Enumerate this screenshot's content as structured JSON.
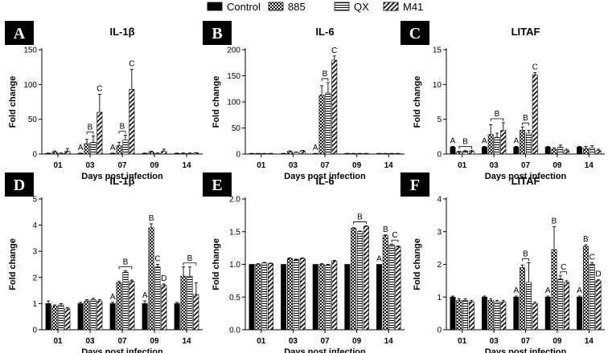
{
  "legend": {
    "items": [
      {
        "label": "Control",
        "pattern": "solid"
      },
      {
        "label": "885",
        "pattern": "checker"
      },
      {
        "label": "QX",
        "pattern": "hlines"
      },
      {
        "label": "M41",
        "pattern": "diag"
      }
    ]
  },
  "colors": {
    "ink": "#000000",
    "panel_label_bg": "#000000",
    "panel_label_fg": "#ffffff",
    "background": "#ffffff"
  },
  "chart_data": [
    {
      "panel": "A",
      "title": "IL-1β",
      "type": "bar",
      "ylabel": "Fold change",
      "xlabel": "Days post infection",
      "ylim": [
        0,
        150
      ],
      "yticks": [
        0,
        50,
        100,
        150
      ],
      "categories": [
        "01",
        "03",
        "07",
        "09",
        "14"
      ],
      "series": [
        {
          "name": "Control",
          "values": [
            1,
            1,
            1,
            1,
            1
          ],
          "errors": [
            0.3,
            0.3,
            0.3,
            0.3,
            0.3
          ]
        },
        {
          "name": "885",
          "values": [
            3,
            15,
            12,
            3,
            1
          ],
          "errors": [
            1.5,
            6,
            5,
            1,
            0.5
          ]
        },
        {
          "name": "QX",
          "values": [
            1,
            17,
            20,
            1,
            1
          ],
          "errors": [
            0.5,
            9,
            7,
            0.5,
            0.5
          ]
        },
        {
          "name": "M41",
          "values": [
            4,
            60,
            93,
            4,
            1.5
          ],
          "errors": [
            4,
            26,
            29,
            3,
            0.5
          ]
        }
      ],
      "annotations": [
        {
          "text": "A",
          "cat": 1,
          "series": 0
        },
        {
          "text": "B",
          "cat": 1,
          "series": [
            1,
            2
          ],
          "bracket": true
        },
        {
          "text": "C",
          "cat": 1,
          "series": 3
        },
        {
          "text": "A",
          "cat": 2,
          "series": 0
        },
        {
          "text": "B",
          "cat": 2,
          "series": [
            1,
            2
          ],
          "bracket": true
        },
        {
          "text": "C",
          "cat": 2,
          "series": 3
        }
      ]
    },
    {
      "panel": "B",
      "title": "IL-6",
      "type": "bar",
      "ylabel": "Fold change",
      "xlabel": "Days post infection",
      "ylim": [
        0,
        200
      ],
      "yticks": [
        0,
        50,
        100,
        150,
        200
      ],
      "categories": [
        "01",
        "03",
        "07",
        "09",
        "14"
      ],
      "series": [
        {
          "name": "Control",
          "values": [
            1,
            1,
            1,
            1,
            1
          ],
          "errors": [
            0.3,
            0.3,
            0.3,
            0.3,
            0.3
          ]
        },
        {
          "name": "885",
          "values": [
            1,
            5,
            113,
            1,
            1
          ],
          "errors": [
            0.3,
            1,
            18,
            0.3,
            0.3
          ]
        },
        {
          "name": "QX",
          "values": [
            1,
            3,
            117,
            1,
            1
          ],
          "errors": [
            0.3,
            1,
            20,
            0.3,
            0.3
          ]
        },
        {
          "name": "M41",
          "values": [
            1,
            6,
            180,
            1,
            1
          ],
          "errors": [
            0.3,
            1,
            8,
            0.3,
            0.3
          ]
        }
      ],
      "annotations": [
        {
          "text": "A",
          "cat": 2,
          "series": 0
        },
        {
          "text": "B",
          "cat": 2,
          "series": [
            1,
            2
          ],
          "bracket": true
        },
        {
          "text": "C",
          "cat": 2,
          "series": 3
        }
      ]
    },
    {
      "panel": "C",
      "title": "LITAF",
      "type": "bar",
      "ylabel": "Fold change",
      "xlabel": "Days post infection",
      "ylim": [
        0,
        15
      ],
      "yticks": [
        0,
        5,
        10,
        15
      ],
      "categories": [
        "01",
        "03",
        "07",
        "09",
        "14"
      ],
      "series": [
        {
          "name": "Control",
          "values": [
            1,
            1,
            1,
            1,
            1
          ],
          "errors": [
            0.1,
            0.1,
            0.1,
            0.1,
            0.1
          ]
        },
        {
          "name": "885",
          "values": [
            0.3,
            2.8,
            3.4,
            0.7,
            0.8
          ],
          "errors": [
            0.1,
            1.4,
            0.5,
            0.2,
            0.3
          ]
        },
        {
          "name": "QX",
          "values": [
            0.4,
            2.4,
            3,
            1,
            0.9
          ],
          "errors": [
            0.1,
            0.6,
            0.4,
            0.3,
            0.3
          ]
        },
        {
          "name": "M41",
          "values": [
            0.4,
            3.4,
            11.4,
            0.5,
            0.5
          ],
          "errors": [
            0.1,
            1.1,
            0.3,
            0.2,
            0.2
          ]
        }
      ],
      "annotations": [
        {
          "text": "A",
          "cat": 0,
          "series": 0
        },
        {
          "text": "B",
          "cat": 0,
          "series": [
            1,
            3
          ],
          "bracket": true
        },
        {
          "text": "A",
          "cat": 1,
          "series": 0
        },
        {
          "text": "B",
          "cat": 1,
          "series": [
            1,
            3
          ],
          "bracket": true
        },
        {
          "text": "A",
          "cat": 2,
          "series": 0
        },
        {
          "text": "B",
          "cat": 2,
          "series": [
            1,
            2
          ],
          "bracket": true
        },
        {
          "text": "C",
          "cat": 2,
          "series": 3
        }
      ]
    },
    {
      "panel": "D",
      "title": "IL-1β",
      "type": "bar",
      "ylabel": "Fold change",
      "xlabel": "Days post infection",
      "ylim": [
        0,
        5
      ],
      "yticks": [
        0,
        1,
        2,
        3,
        4,
        5
      ],
      "categories": [
        "01",
        "03",
        "07",
        "09",
        "14"
      ],
      "series": [
        {
          "name": "Control",
          "values": [
            1,
            1,
            1,
            1,
            1
          ],
          "errors": [
            0.1,
            0.05,
            0.05,
            0.1,
            0.05
          ]
        },
        {
          "name": "885",
          "values": [
            0.9,
            1.1,
            1.8,
            3.9,
            2.05
          ],
          "errors": [
            0.05,
            0.05,
            0.05,
            0.15,
            0.35
          ]
        },
        {
          "name": "QX",
          "values": [
            0.95,
            1.15,
            2.2,
            2.4,
            2.05
          ],
          "errors": [
            0.05,
            0.05,
            0.05,
            0.1,
            0.35
          ]
        },
        {
          "name": "M41",
          "values": [
            0.8,
            1.1,
            1.85,
            1.7,
            1.35
          ],
          "errors": [
            0.05,
            0.05,
            0.05,
            0.05,
            0.45
          ]
        }
      ],
      "annotations": [
        {
          "text": "A",
          "cat": 2,
          "series": 0
        },
        {
          "text": "B",
          "cat": 2,
          "series": [
            1,
            3
          ],
          "bracket": true
        },
        {
          "text": "A",
          "cat": 3,
          "series": 0
        },
        {
          "text": "B",
          "cat": 3,
          "series": 1
        },
        {
          "text": "C",
          "cat": 3,
          "series": 2
        },
        {
          "text": "D",
          "cat": 3,
          "series": 3
        },
        {
          "text": "B",
          "cat": 4,
          "series": [
            1,
            3
          ],
          "bracket": true
        }
      ]
    },
    {
      "panel": "E",
      "title": "IL-6",
      "type": "bar",
      "ylabel": "Fold change",
      "xlabel": "Days post infection",
      "ylim": [
        0,
        2
      ],
      "yticks": [
        0,
        0.5,
        1,
        1.5,
        2
      ],
      "ytick_labels": [
        "0.0",
        "0.5",
        "1.0",
        "1.5",
        "2.0"
      ],
      "categories": [
        "01",
        "03",
        "07",
        "09",
        "14"
      ],
      "series": [
        {
          "name": "Control",
          "values": [
            1,
            1,
            1,
            1,
            1
          ],
          "errors": [
            0,
            0,
            0,
            0,
            0
          ]
        },
        {
          "name": "885",
          "values": [
            1,
            1.09,
            1,
            1.55,
            1.44
          ],
          "errors": [
            0.01,
            0.01,
            0.01,
            0.01,
            0.01
          ]
        },
        {
          "name": "QX",
          "values": [
            1.02,
            1.07,
            0.99,
            1.5,
            1.3
          ],
          "errors": [
            0.01,
            0.01,
            0.01,
            0.01,
            0.01
          ]
        },
        {
          "name": "M41",
          "values": [
            1.01,
            1.09,
            1.05,
            1.58,
            1.27
          ],
          "errors": [
            0.01,
            0.01,
            0.01,
            0.01,
            0.01
          ]
        }
      ],
      "annotations": [
        {
          "text": "B",
          "cat": 3,
          "series": [
            1,
            3
          ],
          "bracket": true
        },
        {
          "text": "A",
          "cat": 4,
          "series": 0
        },
        {
          "text": "B",
          "cat": 4,
          "series": 1
        },
        {
          "text": "C",
          "cat": 4,
          "series": [
            2,
            3
          ],
          "bracket": true
        }
      ]
    },
    {
      "panel": "F",
      "title": "LITAF",
      "type": "bar",
      "ylabel": "Fold change",
      "xlabel": "Days post infection",
      "ylim": [
        0,
        4
      ],
      "yticks": [
        0,
        1,
        2,
        3,
        4
      ],
      "categories": [
        "01",
        "03",
        "07",
        "09",
        "14"
      ],
      "series": [
        {
          "name": "Control",
          "values": [
            1,
            1,
            1,
            1,
            1
          ],
          "errors": [
            0.03,
            0.03,
            0.03,
            0.03,
            0.03
          ]
        },
        {
          "name": "885",
          "values": [
            0.9,
            0.9,
            1.9,
            2.45,
            2.55
          ],
          "errors": [
            0.05,
            0.05,
            0.08,
            0.7,
            0.05
          ]
        },
        {
          "name": "QX",
          "values": [
            0.9,
            0.85,
            1.45,
            1.55,
            2.0
          ],
          "errors": [
            0.05,
            0.05,
            0.6,
            0.1,
            0.05
          ]
        },
        {
          "name": "M41",
          "values": [
            0.85,
            0.85,
            0.8,
            1.45,
            1.5
          ],
          "errors": [
            0.05,
            0.05,
            0.05,
            0.05,
            0.03
          ]
        }
      ],
      "annotations": [
        {
          "text": "A",
          "cat": 2,
          "series": 0
        },
        {
          "text": "B",
          "cat": 2,
          "series": [
            1,
            2
          ],
          "bracket": true
        },
        {
          "text": "A",
          "cat": 3,
          "series": 0
        },
        {
          "text": "B",
          "cat": 3,
          "series": 1
        },
        {
          "text": "C",
          "cat": 3,
          "series": [
            2,
            3
          ],
          "bracket": true
        },
        {
          "text": "A",
          "cat": 4,
          "series": 0
        },
        {
          "text": "B",
          "cat": 4,
          "series": 1
        },
        {
          "text": "C",
          "cat": 4,
          "series": 2
        },
        {
          "text": "D",
          "cat": 4,
          "series": 3
        }
      ]
    }
  ]
}
